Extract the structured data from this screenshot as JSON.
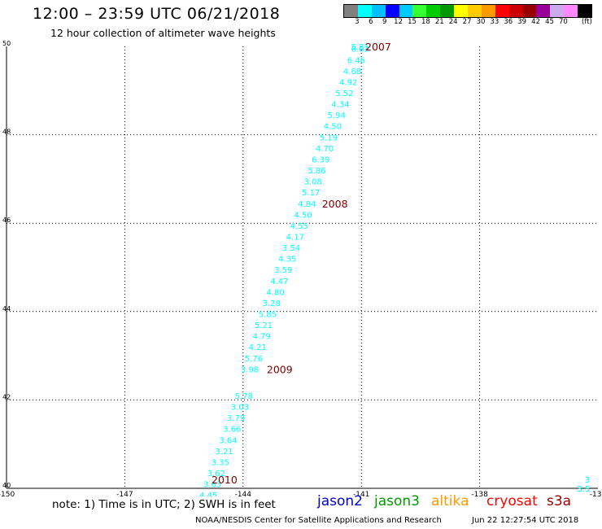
{
  "header": {
    "title": "12:00 – 23:59 UTC 06/21/2018",
    "subtitle": "12 hour collection of altimeter wave heights"
  },
  "colorbar": {
    "colors": [
      "#808080",
      "#00ffff",
      "#00bfff",
      "#0000ff",
      "#00ccff",
      "#33ff33",
      "#00cc00",
      "#009900",
      "#ffff00",
      "#ffcc00",
      "#ff9900",
      "#ff0000",
      "#cc0000",
      "#990000",
      "#990099",
      "#ccaaee",
      "#ff88ff",
      "#000000"
    ],
    "labels": [
      "3",
      "6",
      "9",
      "12",
      "15",
      "18",
      "21",
      "24",
      "27",
      "30",
      "33",
      "36",
      "39",
      "42",
      "45",
      "70"
    ],
    "unit": "(ft)"
  },
  "footer": {
    "note": "note: 1) Time is in UTC; 2) SWH is in feet",
    "credit": "NOAA/NESDIS Center for Satellite Applications and Research",
    "timestamp": "Jun 22 12:27:54 UTC 2018"
  },
  "legend": [
    {
      "name": "jason2",
      "color": "#0000cc"
    },
    {
      "name": "jason3",
      "color": "#009900"
    },
    {
      "name": "altika",
      "color": "#ff9900"
    },
    {
      "name": "cryosat",
      "color": "#ff0000"
    },
    {
      "name": "s3a",
      "color": "#990000"
    }
  ],
  "chart_data": {
    "type": "scatter",
    "xlabel": "",
    "ylabel": "",
    "xlim": [
      -150,
      -135
    ],
    "ylim": [
      40,
      50
    ],
    "x_ticks": [
      "-150",
      "-147",
      "-144",
      "-141",
      "-138",
      "-135"
    ],
    "y_ticks": [
      "40",
      "42",
      "44",
      "46",
      "48",
      "50"
    ],
    "grid": true,
    "point_color": "#00ffff",
    "time_label_color": "#800000",
    "points": [
      {
        "lon": -140.8,
        "lat": 50.0,
        "label": "5.81"
      },
      {
        "lon": -140.8,
        "lat": 49.95,
        "label": "6.02"
      },
      {
        "lon": -140.9,
        "lat": 49.7,
        "label": "6.46"
      },
      {
        "lon": -141.0,
        "lat": 49.45,
        "label": "4.68"
      },
      {
        "lon": -141.1,
        "lat": 49.2,
        "label": "4.92"
      },
      {
        "lon": -141.2,
        "lat": 48.95,
        "label": "5.52"
      },
      {
        "lon": -141.3,
        "lat": 48.7,
        "label": "4.34"
      },
      {
        "lon": -141.4,
        "lat": 48.45,
        "label": "5.94"
      },
      {
        "lon": -141.5,
        "lat": 48.2,
        "label": "4.50"
      },
      {
        "lon": -141.6,
        "lat": 47.95,
        "label": "5.19"
      },
      {
        "lon": -141.7,
        "lat": 47.7,
        "label": "4.70"
      },
      {
        "lon": -141.8,
        "lat": 47.45,
        "label": "6.39"
      },
      {
        "lon": -141.9,
        "lat": 47.2,
        "label": "5.86"
      },
      {
        "lon": -142.0,
        "lat": 46.95,
        "label": "3.08"
      },
      {
        "lon": -142.05,
        "lat": 46.7,
        "label": "5.17"
      },
      {
        "lon": -142.15,
        "lat": 46.45,
        "label": "4.84"
      },
      {
        "lon": -142.25,
        "lat": 46.2,
        "label": "4.50"
      },
      {
        "lon": -142.35,
        "lat": 45.95,
        "label": "4.55"
      },
      {
        "lon": -142.45,
        "lat": 45.7,
        "label": "4.17"
      },
      {
        "lon": -142.55,
        "lat": 45.45,
        "label": "3.54"
      },
      {
        "lon": -142.65,
        "lat": 45.2,
        "label": "4.35"
      },
      {
        "lon": -142.75,
        "lat": 44.95,
        "label": "3.59"
      },
      {
        "lon": -142.85,
        "lat": 44.7,
        "label": "4.47"
      },
      {
        "lon": -142.95,
        "lat": 44.45,
        "label": "4.80"
      },
      {
        "lon": -143.05,
        "lat": 44.2,
        "label": "3.28"
      },
      {
        "lon": -143.15,
        "lat": 43.95,
        "label": "5.85"
      },
      {
        "lon": -143.25,
        "lat": 43.7,
        "label": "5.21"
      },
      {
        "lon": -143.3,
        "lat": 43.45,
        "label": "4.79"
      },
      {
        "lon": -143.4,
        "lat": 43.2,
        "label": "4.21"
      },
      {
        "lon": -143.5,
        "lat": 42.95,
        "label": "5.76"
      },
      {
        "lon": -143.6,
        "lat": 42.7,
        "label": "3.98"
      },
      {
        "lon": -143.75,
        "lat": 42.1,
        "label": "5.78"
      },
      {
        "lon": -143.85,
        "lat": 41.85,
        "label": "3.03"
      },
      {
        "lon": -143.95,
        "lat": 41.6,
        "label": "3.79"
      },
      {
        "lon": -144.05,
        "lat": 41.35,
        "label": "3.66"
      },
      {
        "lon": -144.15,
        "lat": 41.1,
        "label": "3.64"
      },
      {
        "lon": -144.25,
        "lat": 40.85,
        "label": "3.21"
      },
      {
        "lon": -144.35,
        "lat": 40.6,
        "label": "3.35"
      },
      {
        "lon": -144.45,
        "lat": 40.35,
        "label": "3.62"
      },
      {
        "lon": -144.55,
        "lat": 40.1,
        "label": "3.63"
      },
      {
        "lon": -144.65,
        "lat": 39.85,
        "label": "4.45"
      },
      {
        "lon": -144.75,
        "lat": 39.6,
        "label": "4.60"
      },
      {
        "lon": -144.85,
        "lat": 39.35,
        "label": "4.81"
      },
      {
        "lon": -135.2,
        "lat": 40.2,
        "label": "3"
      },
      {
        "lon": -135.2,
        "lat": 40.0,
        "label": "3.5"
      }
    ],
    "time_labels": [
      {
        "lon": -140.9,
        "lat": 50.0,
        "label": "2007"
      },
      {
        "lon": -142.0,
        "lat": 46.45,
        "label": "2008"
      },
      {
        "lon": -143.4,
        "lat": 42.7,
        "label": "2009"
      },
      {
        "lon": -144.8,
        "lat": 40.2,
        "label": "2010"
      }
    ]
  }
}
